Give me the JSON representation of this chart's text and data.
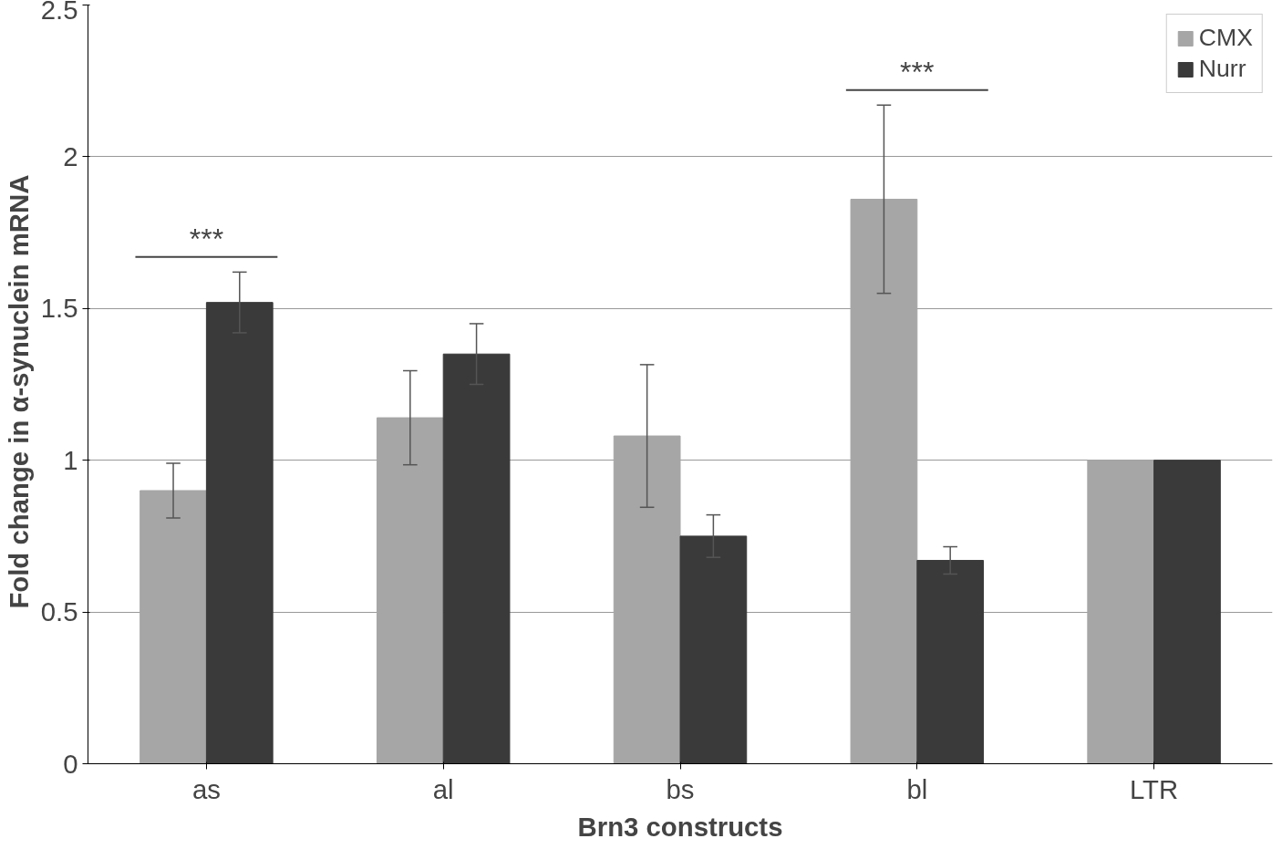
{
  "chart_data": {
    "type": "bar",
    "xlabel": "Brn3 constructs",
    "ylabel": "Fold  change in  α-synuclein mRNA",
    "categories": [
      "as",
      "al",
      "bs",
      "bl",
      "LTR"
    ],
    "series": [
      {
        "name": "CMX",
        "color": "#a6a6a6",
        "values": [
          0.9,
          1.14,
          1.08,
          1.86,
          1.0
        ],
        "errors": [
          0.09,
          0.155,
          0.235,
          0.31,
          null
        ]
      },
      {
        "name": "Nurr",
        "color": "#3a3a3a",
        "values": [
          1.52,
          1.35,
          0.75,
          0.67,
          1.0
        ],
        "errors": [
          0.1,
          0.1,
          0.07,
          0.045,
          null
        ]
      }
    ],
    "ylim": [
      0,
      2.5
    ],
    "yticks": [
      0,
      0.5,
      1,
      1.5,
      2,
      2.5
    ],
    "grid": "y",
    "legend": "top right",
    "annotations": [
      "***",
      "***"
    ]
  }
}
